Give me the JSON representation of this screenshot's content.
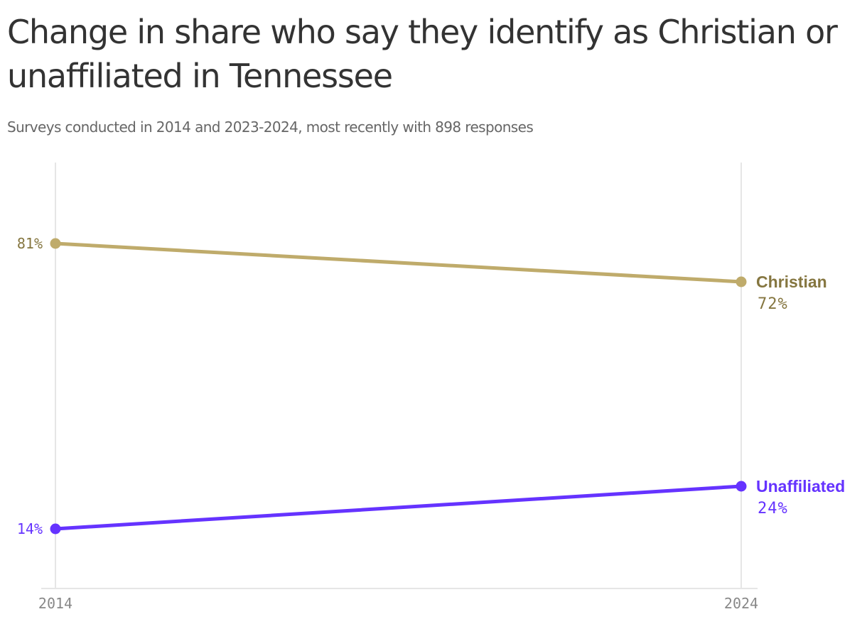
{
  "header": {
    "title": "Change in share who say they identify as Christian or unaffiliated in Tennessee",
    "subtitle": "Surveys conducted in 2014 and 2023-2024, most recently with 898 responses"
  },
  "chart_data": {
    "type": "line",
    "title": "Change in share who say they identify as Christian or unaffiliated in Tennessee",
    "subtitle": "Surveys conducted in 2014 and 2023-2024, most recently with 898 responses",
    "x": [
      "2014",
      "2024"
    ],
    "xlabel": "",
    "ylabel": "",
    "ylim": [
      0,
      100
    ],
    "grid": "vertical lines at each year",
    "legend_position": "direct labels at right end of lines",
    "series": [
      {
        "name": "Christian",
        "values": [
          81,
          72
        ],
        "color": "#bfab6b",
        "label_color": "#857640",
        "start_label": "81%",
        "end_label": "72%"
      },
      {
        "name": "Unaffiliated",
        "values": [
          14,
          24
        ],
        "color": "#6533ff",
        "label_color": "#6533ff",
        "start_label": "14%",
        "end_label": "24%"
      }
    ]
  },
  "colors": {
    "title": "#333333",
    "subtitle": "#666666",
    "gridline": "#e6e6e6",
    "axis_tick": "#888888"
  }
}
